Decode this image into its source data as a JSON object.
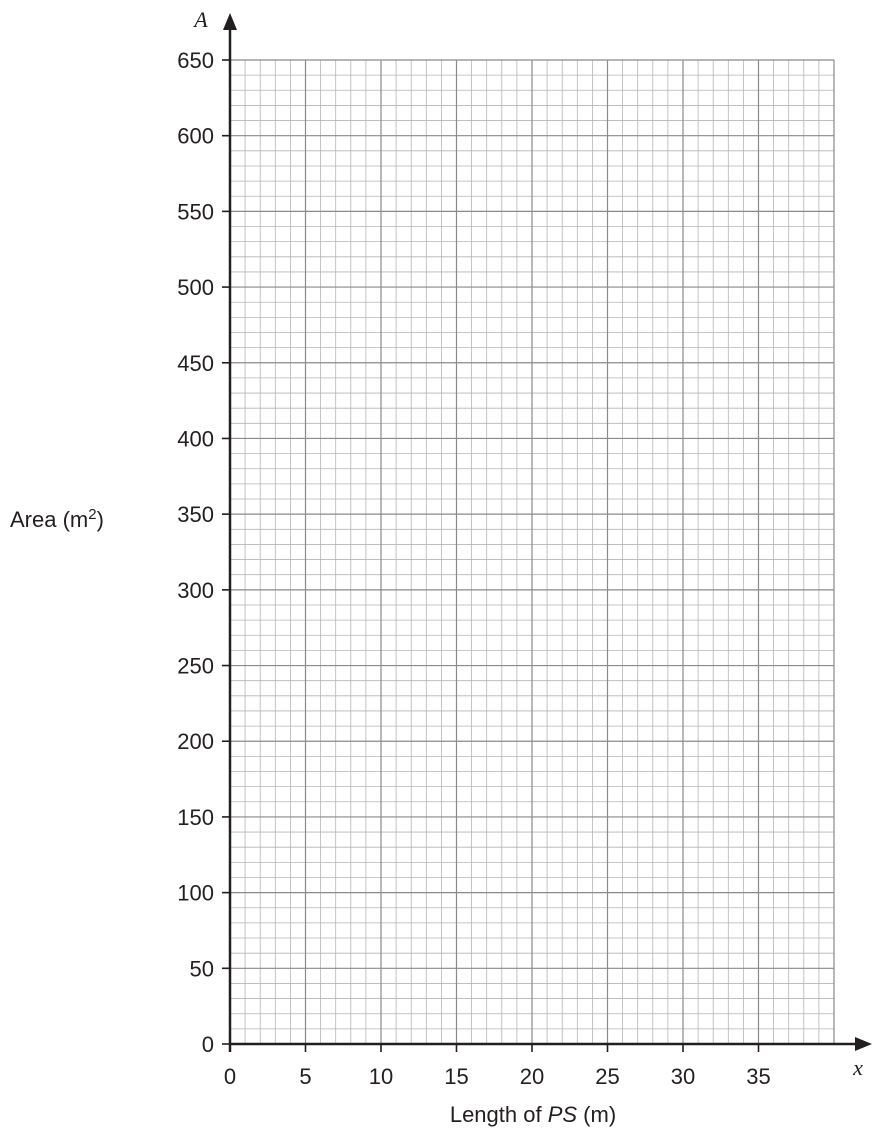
{
  "chart_data": {
    "type": "line",
    "series": [],
    "grid": true,
    "xlim": [
      0,
      40
    ],
    "ylim": [
      0,
      650
    ],
    "x_axis_var": "x",
    "y_axis_var": "A",
    "xlabel": {
      "prefix": "Length of ",
      "italic": "PS",
      "suffix": " (m)"
    },
    "ylabel": {
      "prefix": "Area (m",
      "sup": "2",
      "suffix": ")"
    },
    "x_ticks": [
      0,
      5,
      10,
      15,
      20,
      25,
      30,
      35
    ],
    "y_ticks": [
      0,
      50,
      100,
      150,
      200,
      250,
      300,
      350,
      400,
      450,
      500,
      550,
      600,
      650
    ],
    "x_minor_step": 1,
    "y_minor_step": 10,
    "colors": {
      "minor_grid": "#b5b5b5",
      "major_grid": "#8a8a8a",
      "axis": "#231f20"
    }
  }
}
